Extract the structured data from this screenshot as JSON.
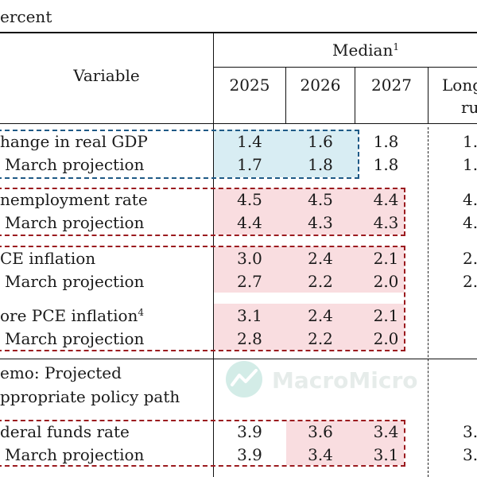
{
  "unit_label": "ercent",
  "header": {
    "variable": "Variable",
    "median": "Median",
    "median_note": "1",
    "years": [
      "2025",
      "2026",
      "2027"
    ],
    "longer_run_line1": "Long",
    "longer_run_line2": "ru"
  },
  "rows": {
    "gdp": {
      "label": "hange in real GDP",
      "values": [
        "1.4",
        "1.6",
        "1.8"
      ],
      "longrun": "1."
    },
    "gdp_march": {
      "label": "March projection",
      "values": [
        "1.7",
        "1.8",
        "1.8"
      ],
      "longrun": "1."
    },
    "unemp": {
      "label": "nemployment rate",
      "values": [
        "4.5",
        "4.5",
        "4.4"
      ],
      "longrun": "4."
    },
    "unemp_march": {
      "label": "March projection",
      "values": [
        "4.4",
        "4.3",
        "4.3"
      ],
      "longrun": "4."
    },
    "pce": {
      "label": "CE inflation",
      "values": [
        "3.0",
        "2.4",
        "2.1"
      ],
      "longrun": "2."
    },
    "pce_march": {
      "label": "March projection",
      "values": [
        "2.7",
        "2.2",
        "2.0"
      ],
      "longrun": "2."
    },
    "core": {
      "label": "ore PCE inflation",
      "note": "4",
      "values": [
        "3.1",
        "2.4",
        "2.1"
      ]
    },
    "core_march": {
      "label": "March projection",
      "values": [
        "2.8",
        "2.2",
        "2.0"
      ]
    },
    "memo_line1": "emo: Projected",
    "memo_line2": "ppropriate policy path",
    "ffr": {
      "label": "deral funds rate",
      "values": [
        "3.9",
        "3.6",
        "3.4"
      ],
      "longrun": "3."
    },
    "ffr_march": {
      "label": "March projection",
      "values": [
        "3.9",
        "3.4",
        "3.1"
      ],
      "longrun": "3."
    }
  },
  "watermark": "MacroMicro",
  "colors": {
    "blue_highlight": "#d8edf3",
    "red_highlight": "#f9dde0",
    "blue_box": "#1f5a86",
    "red_box": "#9b1b1f"
  }
}
